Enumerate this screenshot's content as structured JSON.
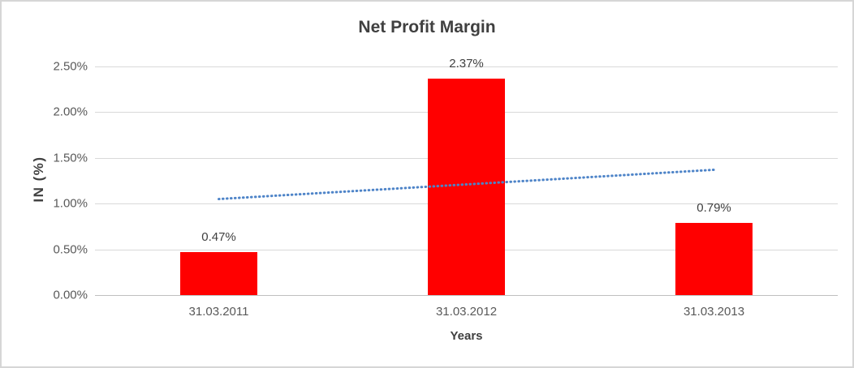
{
  "chart_data": {
    "type": "bar",
    "title": "Net Profit Margin",
    "xlabel": "Years",
    "ylabel": "IN (%)",
    "categories": [
      "31.03.2011",
      "31.03.2012",
      "31.03.2013"
    ],
    "series": [
      {
        "name": "Net Profit Margin",
        "type": "bar",
        "color": "#ff0000",
        "values": [
          0.47,
          2.37,
          0.79
        ],
        "data_labels": [
          "0.47%",
          "2.37%",
          "0.79%"
        ]
      },
      {
        "name": "Linear trendline",
        "type": "line",
        "line_style": "dotted",
        "color": "#4e84c8",
        "values": [
          1.05,
          1.21,
          1.37
        ]
      }
    ],
    "ylim": [
      0,
      2.5
    ],
    "yticks": [
      {
        "value": 0.0,
        "label": "0.00%"
      },
      {
        "value": 0.5,
        "label": "0.50%"
      },
      {
        "value": 1.0,
        "label": "1.00%"
      },
      {
        "value": 1.5,
        "label": "1.50%"
      },
      {
        "value": 2.0,
        "label": "2.00%"
      },
      {
        "value": 2.5,
        "label": "2.50%"
      }
    ],
    "grid": true,
    "legend_position": "none",
    "colors": {
      "bar": "#ff0000",
      "trendline": "#4e84c8",
      "gridline": "#d9d9d9",
      "axis_line": "#bfbfbf",
      "title_text": "#404040",
      "tick_text": "#595959",
      "frame_border": "#d6d6d6"
    }
  }
}
